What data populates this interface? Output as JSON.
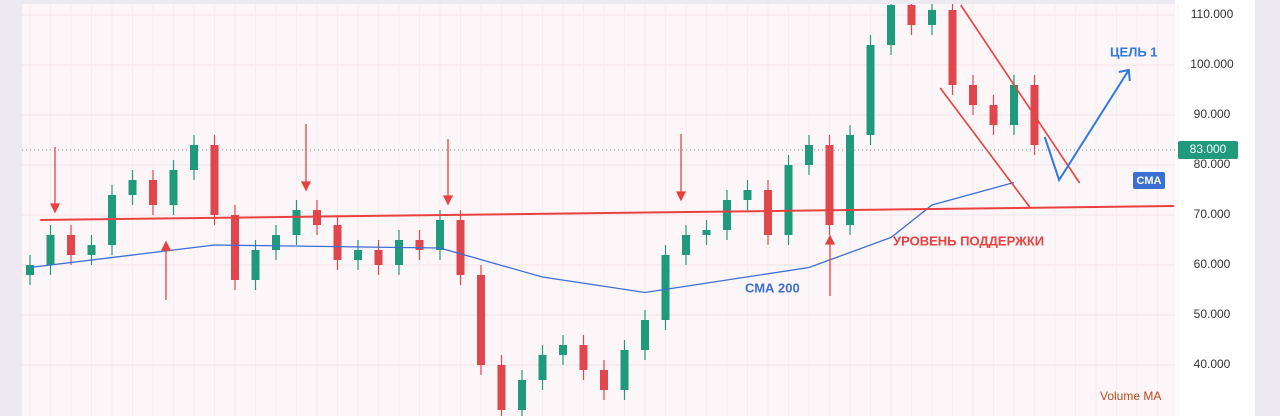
{
  "chart_data": {
    "type": "candlestick",
    "open": [
      58000,
      60000,
      66000,
      62000,
      64000,
      74000,
      77000,
      72000,
      79000,
      84000,
      70000,
      57000,
      63000,
      66000,
      71000,
      68000,
      61000,
      63000,
      60000,
      65000,
      63000,
      69000,
      58000,
      40000,
      31000,
      37000,
      42000,
      44000,
      39000,
      35000,
      43000,
      49000,
      62000,
      66000,
      67000,
      73000,
      75000,
      66000,
      80000,
      84000,
      68000,
      86000,
      104000,
      112000,
      108000,
      111000,
      96000,
      92000,
      88000,
      96000
    ],
    "high": [
      62000,
      68000,
      68000,
      66000,
      76000,
      79000,
      79000,
      81000,
      86000,
      86000,
      72000,
      65000,
      68000,
      73000,
      73000,
      70000,
      65000,
      65000,
      67000,
      67000,
      71000,
      71000,
      60000,
      42000,
      39000,
      44000,
      46000,
      46000,
      41000,
      45000,
      51000,
      64000,
      68000,
      69000,
      75000,
      77000,
      77000,
      82000,
      86000,
      86000,
      88000,
      106000,
      114000,
      114000,
      113000,
      113000,
      98000,
      94000,
      98000,
      98000
    ],
    "low": [
      56000,
      58000,
      60000,
      60000,
      62000,
      72000,
      70000,
      70000,
      77000,
      68000,
      55000,
      55000,
      61000,
      64000,
      66000,
      59000,
      59000,
      58000,
      58000,
      61000,
      61000,
      56000,
      38000,
      29000,
      29000,
      35000,
      40000,
      37000,
      33000,
      33000,
      41000,
      47000,
      60000,
      64000,
      65000,
      71000,
      64000,
      64000,
      78000,
      66000,
      66000,
      84000,
      102000,
      106000,
      106000,
      94000,
      90000,
      86000,
      86000,
      82000
    ],
    "close": [
      60000,
      66000,
      62000,
      64000,
      74000,
      77000,
      72000,
      79000,
      84000,
      70000,
      57000,
      63000,
      66000,
      71000,
      68000,
      61000,
      63000,
      60000,
      65000,
      63000,
      69000,
      58000,
      40000,
      31000,
      37000,
      42000,
      44000,
      39000,
      35000,
      43000,
      49000,
      62000,
      66000,
      67000,
      73000,
      75000,
      66000,
      80000,
      84000,
      68000,
      86000,
      104000,
      112000,
      108000,
      111000,
      96000,
      92000,
      88000,
      96000,
      84000
    ],
    "up_color": "#1f9a7a",
    "down_color": "#e0474c",
    "ylim": [
      30000,
      112000
    ],
    "yticks": [
      {
        "value": 40000,
        "label": "40.000"
      },
      {
        "value": 50000,
        "label": "50.000"
      },
      {
        "value": 60000,
        "label": "60.000"
      },
      {
        "value": 70000,
        "label": "70.000"
      },
      {
        "value": 80000,
        "label": "80.000"
      },
      {
        "value": 90000,
        "label": "90.000"
      },
      {
        "value": 100000,
        "label": "100.000"
      },
      {
        "value": 110000,
        "label": "110.000"
      }
    ],
    "current_price": {
      "value": 83000,
      "label": "83.000"
    },
    "sma": {
      "name": "СМА 200",
      "badge": "СМА",
      "color": "#3b6fd4",
      "x": [
        0,
        9,
        20,
        25,
        30,
        38,
        42,
        44,
        48
      ],
      "values": [
        59500,
        64000,
        63400,
        57600,
        54500,
        59500,
        65500,
        72000,
        76500
      ]
    },
    "support": {
      "label": "УРОВЕНЬ ПОДДЕРЖКИ",
      "color": "#e8413f",
      "x": [
        0.5,
        55.8
      ],
      "values": [
        69000,
        71800
      ]
    },
    "channel_upper": {
      "color": "#e8413f",
      "x": [
        45.4,
        51.2
      ],
      "values": [
        112000,
        76400
      ]
    },
    "channel_lower": {
      "color": "#e8413f",
      "x": [
        44.4,
        48.8
      ],
      "values": [
        95400,
        71400
      ]
    },
    "target": {
      "label": "ЦЕЛЬ 1",
      "color": "#2f7ae0",
      "x": [
        49.5,
        50.2,
        53.6
      ],
      "values": [
        85600,
        77000,
        99000
      ]
    },
    "volume_label": "Volume MA"
  }
}
